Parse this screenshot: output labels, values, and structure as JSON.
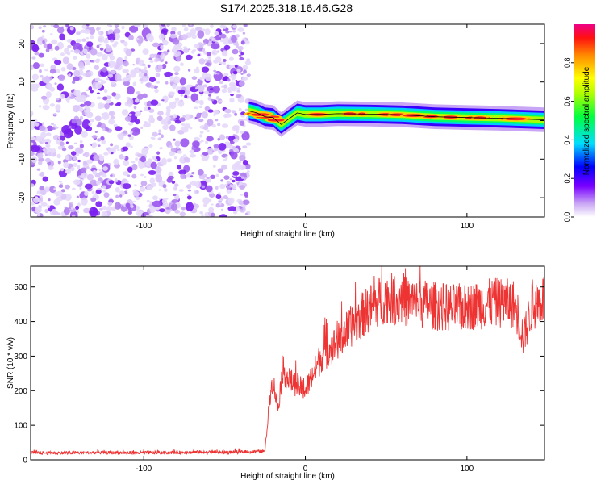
{
  "title": "S174.2025.318.16.46.G28",
  "chart_data": [
    {
      "type": "heatmap",
      "xlabel": "Height of straight line (km)",
      "ylabel": "Frequency (Hz)",
      "xlim": [
        -170,
        148
      ],
      "ylim": [
        -25,
        25
      ],
      "xticks": [
        -100,
        0,
        100
      ],
      "xtick_labels": [
        "-100",
        "0",
        "100"
      ],
      "yticks": [
        -20,
        -10,
        0,
        10,
        20
      ],
      "ytick_labels": [
        "-20",
        "-10",
        "0",
        "10",
        "20"
      ],
      "noise_region_x": [
        -170,
        -35
      ],
      "signal_ridge": {
        "x": [
          -35,
          -30,
          -25,
          -20,
          -15,
          -10,
          -5,
          0,
          10,
          20,
          40,
          60,
          80,
          100,
          120,
          148
        ],
        "freq": [
          2.5,
          2.0,
          1.0,
          0.8,
          -1.0,
          0.5,
          2.0,
          1.6,
          1.6,
          1.8,
          1.7,
          1.5,
          1.0,
          0.8,
          0.6,
          0.2
        ]
      },
      "colorbar": {
        "label": "Normalized spectral amplitude",
        "range": [
          0,
          1
        ],
        "ticks": [
          0.0,
          0.2,
          0.4,
          0.6,
          0.8
        ],
        "tick_labels": [
          "0.0",
          "0.2",
          "0.4",
          "0.6",
          "0.8"
        ]
      }
    },
    {
      "type": "line",
      "xlabel": "Height of straight line (km)",
      "ylabel": "SNR (10 * v/v)",
      "xlim": [
        -170,
        148
      ],
      "ylim": [
        0,
        560
      ],
      "xticks": [
        -100,
        0,
        100
      ],
      "xtick_labels": [
        "-100",
        "0",
        "100"
      ],
      "yticks": [
        0,
        100,
        200,
        300,
        400,
        500
      ],
      "ytick_labels": [
        "0",
        "100",
        "200",
        "300",
        "400",
        "500"
      ],
      "series": [
        {
          "name": "SNR",
          "color": "#ee3333",
          "x": [
            -170,
            -150,
            -130,
            -110,
            -90,
            -70,
            -50,
            -35,
            -25,
            -22,
            -20,
            -17,
            -14,
            -10,
            -5,
            0,
            5,
            10,
            20,
            30,
            40,
            50,
            60,
            70,
            80,
            90,
            100,
            110,
            120,
            130,
            135,
            140,
            148
          ],
          "y": [
            20,
            20,
            21,
            20,
            21,
            22,
            22,
            23,
            25,
            180,
            230,
            150,
            260,
            230,
            215,
            200,
            250,
            300,
            340,
            395,
            440,
            470,
            460,
            455,
            445,
            440,
            440,
            450,
            455,
            450,
            350,
            440,
            470
          ]
        }
      ]
    }
  ]
}
